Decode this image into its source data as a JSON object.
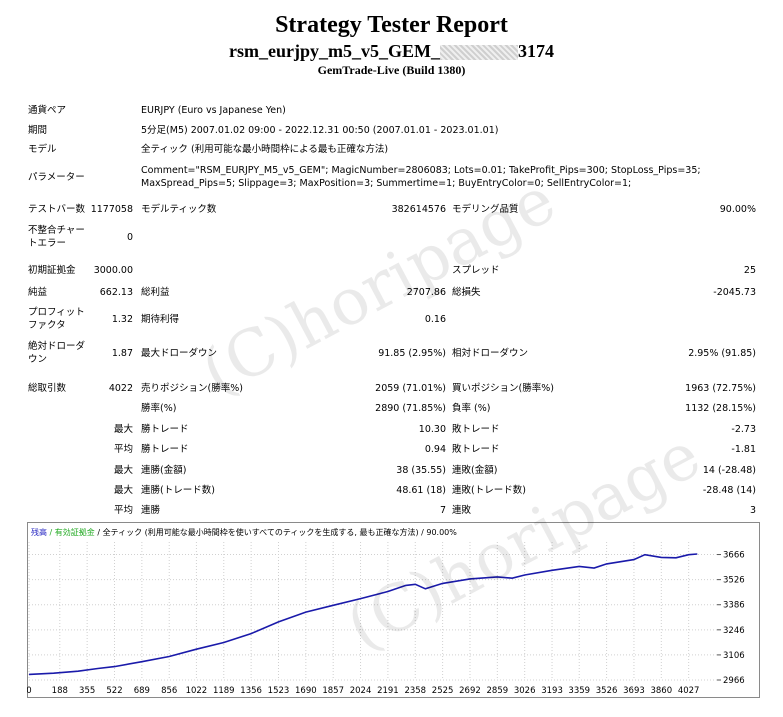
{
  "header": {
    "title": "Strategy Tester Report",
    "ea_prefix": "rsm_eurjpy_m5_v5_GEM_",
    "ea_suffix": "3174",
    "build": "GemTrade-Live (Build 1380)"
  },
  "info": {
    "symbol_label": "通貨ペア",
    "symbol_value": "EURJPY (Euro vs Japanese Yen)",
    "period_label": "期間",
    "period_value": "5分足(M5) 2007.01.02 09:00 - 2022.12.31 00:50 (2007.01.01 - 2023.01.01)",
    "model_label": "モデル",
    "model_value": "全ティック (利用可能な最小時間枠による最も正確な方法)",
    "params_label": "パラメーター",
    "params_line1": "Comment=\"RSM_EURJPY_M5_v5_GEM\"; MagicNumber=2806083; Lots=0.01; TakeProfit_Pips=300; StopLoss_Pips=35;",
    "params_line2": "MaxSpread_Pips=5; Slippage=3; MaxPosition=3; Summertime=1; BuyEntryColor=0; SellEntryColor=1;"
  },
  "bars": {
    "bars_label": "テストバー数",
    "bars_value": "1177058",
    "ticks_label": "モデルティック数",
    "ticks_value": "382614576",
    "quality_label": "モデリング品質",
    "quality_value": "90.00%",
    "errors_label_1": "不整合チャー",
    "errors_label_2": "トエラー",
    "errors_value": "0"
  },
  "stats": {
    "deposit_label": "初期証拠金",
    "deposit_value": "3000.00",
    "spread_label": "スプレッド",
    "spread_value": "25",
    "net_label": "純益",
    "net_value": "662.13",
    "gross_profit_label": "総利益",
    "gross_profit_value": "2707.86",
    "gross_loss_label": "総損失",
    "gross_loss_value": "-2045.73",
    "pf_label_1": "プロフィット",
    "pf_label_2": "ファクタ",
    "pf_value": "1.32",
    "expected_label": "期待利得",
    "expected_value": "0.16",
    "abs_dd_label_1": "絶対ドローダ",
    "abs_dd_label_2": "ウン",
    "abs_dd_value": "1.87",
    "max_dd_label": "最大ドローダウン",
    "max_dd_value": "91.85 (2.95%)",
    "rel_dd_label": "相対ドローダウン",
    "rel_dd_value": "2.95% (91.85)",
    "trades_label": "総取引数",
    "trades_value": "4022",
    "short_label": "売りポジション(勝率%)",
    "short_value": "2059 (71.01%)",
    "long_label": "買いポジション(勝率%)",
    "long_value": "1963 (72.75%)",
    "win_pct_label": "勝率(%)",
    "win_pct_value": "2890 (71.85%)",
    "loss_pct_label": "負率 (%)",
    "loss_pct_value": "1132 (28.15%)",
    "largest_label": "最大",
    "largest_win_label": "勝トレード",
    "largest_win_value": "10.30",
    "largest_loss_label": "敗トレード",
    "largest_loss_value": "-2.73",
    "avg_label": "平均",
    "avg_win_label": "勝トレード",
    "avg_win_value": "0.94",
    "avg_loss_label": "敗トレード",
    "avg_loss_value": "-1.81",
    "max1_label": "最大",
    "cons_wins_amt_label": "連勝(金額)",
    "cons_wins_amt_value": "38 (35.55)",
    "cons_loss_amt_label": "連敗(金額)",
    "cons_loss_amt_value": "14 (-28.48)",
    "max2_label": "最大",
    "cons_wins_cnt_label": "連勝(トレード数)",
    "cons_wins_cnt_value": "48.61 (18)",
    "cons_loss_cnt_label": "連敗(トレード数)",
    "cons_loss_cnt_value": "-28.48 (14)",
    "avg2_label": "平均",
    "avg_wins_label": "連勝",
    "avg_wins_value": "7",
    "avg_loss2_label": "連敗",
    "avg_loss2_value": "3"
  },
  "watermark": "(C)horipage",
  "chart_data": {
    "type": "line",
    "legend_balance": "残高",
    "legend_equity": "/ 有効証拠金",
    "legend_rest": "/ 全ティック (利用可能な最小時間枠を使いすべてのティックを生成する, 最も正確な方法) / 90.00%",
    "x_ticks": [
      "0",
      "188",
      "355",
      "522",
      "689",
      "856",
      "1022",
      "1189",
      "1356",
      "1523",
      "1690",
      "1857",
      "2024",
      "2191",
      "2358",
      "2525",
      "2692",
      "2859",
      "3026",
      "3193",
      "3359",
      "3526",
      "3693",
      "3860",
      "4027"
    ],
    "y_ticks": [
      "3666",
      "3526",
      "3386",
      "3246",
      "3106",
      "2966"
    ],
    "ylim": [
      2966,
      3736
    ],
    "xlim": [
      0,
      4200
    ],
    "series_color": "#1a1aaa",
    "series": [
      {
        "values": [
          [
            0,
            2997
          ],
          [
            150,
            3004
          ],
          [
            300,
            3015
          ],
          [
            420,
            3030
          ],
          [
            522,
            3041
          ],
          [
            689,
            3068
          ],
          [
            856,
            3097
          ],
          [
            1022,
            3138
          ],
          [
            1189,
            3175
          ],
          [
            1356,
            3225
          ],
          [
            1523,
            3290
          ],
          [
            1690,
            3345
          ],
          [
            1857,
            3383
          ],
          [
            2024,
            3420
          ],
          [
            2191,
            3460
          ],
          [
            2300,
            3494
          ],
          [
            2358,
            3500
          ],
          [
            2420,
            3475
          ],
          [
            2525,
            3505
          ],
          [
            2692,
            3530
          ],
          [
            2859,
            3541
          ],
          [
            2950,
            3534
          ],
          [
            3026,
            3552
          ],
          [
            3193,
            3578
          ],
          [
            3359,
            3600
          ],
          [
            3450,
            3591
          ],
          [
            3526,
            3614
          ],
          [
            3693,
            3638
          ],
          [
            3760,
            3665
          ],
          [
            3860,
            3650
          ],
          [
            3950,
            3648
          ],
          [
            4027,
            3665
          ],
          [
            4080,
            3669
          ]
        ]
      }
    ]
  }
}
